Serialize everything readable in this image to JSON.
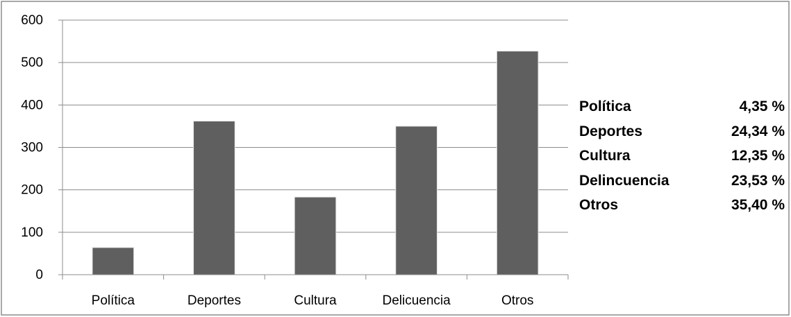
{
  "chart_data": {
    "type": "bar",
    "categories": [
      "Política",
      "Deportes",
      "Cultura",
      "Delicuencia",
      "Otros"
    ],
    "values": [
      64,
      362,
      183,
      350,
      527
    ],
    "ylim": [
      0,
      600
    ],
    "yticks": [
      "0",
      "100",
      "200",
      "300",
      "400",
      "500",
      "600"
    ],
    "grid": true,
    "bar_color": "#5f5f5f",
    "grid_color": "#8c8c8c"
  },
  "side_table": [
    {
      "label": "Política",
      "value": "4,35 %"
    },
    {
      "label": "Deportes",
      "value": "24,34 %"
    },
    {
      "label": "Cultura",
      "value": "12,35 %"
    },
    {
      "label": "Delincuencia",
      "value": "23,53 %"
    },
    {
      "label": "Otros",
      "value": "35,40 %"
    }
  ]
}
